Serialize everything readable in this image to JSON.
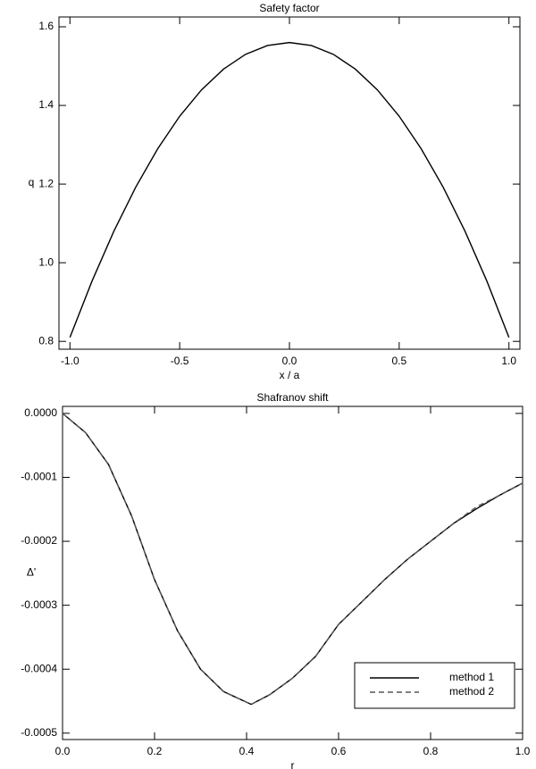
{
  "chart_data": [
    {
      "type": "line",
      "title": "Safety factor",
      "x_label": "x / a",
      "y_label": "q",
      "x": [
        -1,
        -0.9,
        -0.8,
        -0.7,
        -0.6,
        -0.5,
        -0.4,
        -0.3,
        -0.2,
        -0.1,
        0,
        0.1,
        0.2,
        0.3,
        0.4,
        0.5,
        0.6,
        0.7,
        0.8,
        0.9,
        1
      ],
      "values": [
        0.81,
        0.9525,
        1.08,
        1.1925,
        1.29,
        1.3725,
        1.44,
        1.4925,
        1.53,
        1.5525,
        1.56,
        1.5525,
        1.53,
        1.4925,
        1.44,
        1.3725,
        1.29,
        1.1925,
        1.08,
        0.9525,
        0.81
      ],
      "color": "#000000",
      "xlim": [
        -1.05,
        1.05
      ],
      "xticks": [
        {
          "value": -1,
          "label": "-1.0"
        },
        {
          "value": -0.5,
          "label": "-0.5"
        },
        {
          "value": 0,
          "label": "0.0"
        },
        0.5,
        {
          "value": 1,
          "label": "1.0"
        }
      ],
      "ylim": [
        0.78,
        1.625
      ],
      "yticks": [
        0.8,
        {
          "value": 1,
          "label": "1.0"
        },
        1.2,
        1.4,
        1.6
      ]
    },
    {
      "type": "line",
      "title": "Shafranov shift",
      "x_label": "r",
      "y_label": "Δ'",
      "x": [
        0,
        0.05,
        0.1,
        0.15,
        0.2,
        0.25,
        0.3,
        0.35,
        0.41,
        0.45,
        0.5,
        0.55,
        0.6,
        0.65,
        0.7,
        0.75,
        0.8,
        0.85,
        0.9,
        0.95,
        1
      ],
      "series": [
        {
          "name": "method 1",
          "color": "#000000",
          "linestyle": "solid",
          "values": [
            0,
            -3e-05,
            -8e-05,
            -0.00016,
            -0.00026,
            -0.00034,
            -0.0004,
            -0.000435,
            -0.000455,
            -0.00044,
            -0.000414,
            -0.00038,
            -0.00033,
            -0.000295,
            -0.00026,
            -0.000228,
            -0.0002,
            -0.000172,
            -0.000149,
            -0.000128,
            -0.000109
          ]
        },
        {
          "name": "method 2",
          "color": "#555555",
          "linestyle": "dashed",
          "values": [
            0,
            -3e-05,
            -8e-05,
            -0.00016,
            -0.00026,
            -0.00034,
            -0.0004,
            -0.000435,
            -0.000455,
            -0.00044,
            -0.000414,
            -0.00038,
            -0.00033,
            -0.000295,
            -0.00026,
            -0.000228,
            -0.0002,
            -0.000172,
            -0.000146,
            -0.000128,
            -0.000109
          ]
        }
      ],
      "xlim": [
        0,
        1
      ],
      "xticks": [
        {
          "value": 0,
          "label": "0.0"
        },
        0.2,
        0.4,
        0.6,
        0.8,
        {
          "value": 1,
          "label": "1.0"
        }
      ],
      "ylim": [
        -0.00051,
        1.1e-05
      ],
      "yticks": [
        {
          "value": -0.0005,
          "label": "-0.0005"
        },
        {
          "value": -0.0004,
          "label": "-0.0004"
        },
        {
          "value": -0.0003,
          "label": "-0.0003"
        },
        {
          "value": -0.0002,
          "label": "-0.0002"
        },
        {
          "value": -0.0001,
          "label": "-0.0001"
        },
        {
          "value": 0,
          "label": "0.0000"
        }
      ],
      "legend": "lower right"
    }
  ]
}
